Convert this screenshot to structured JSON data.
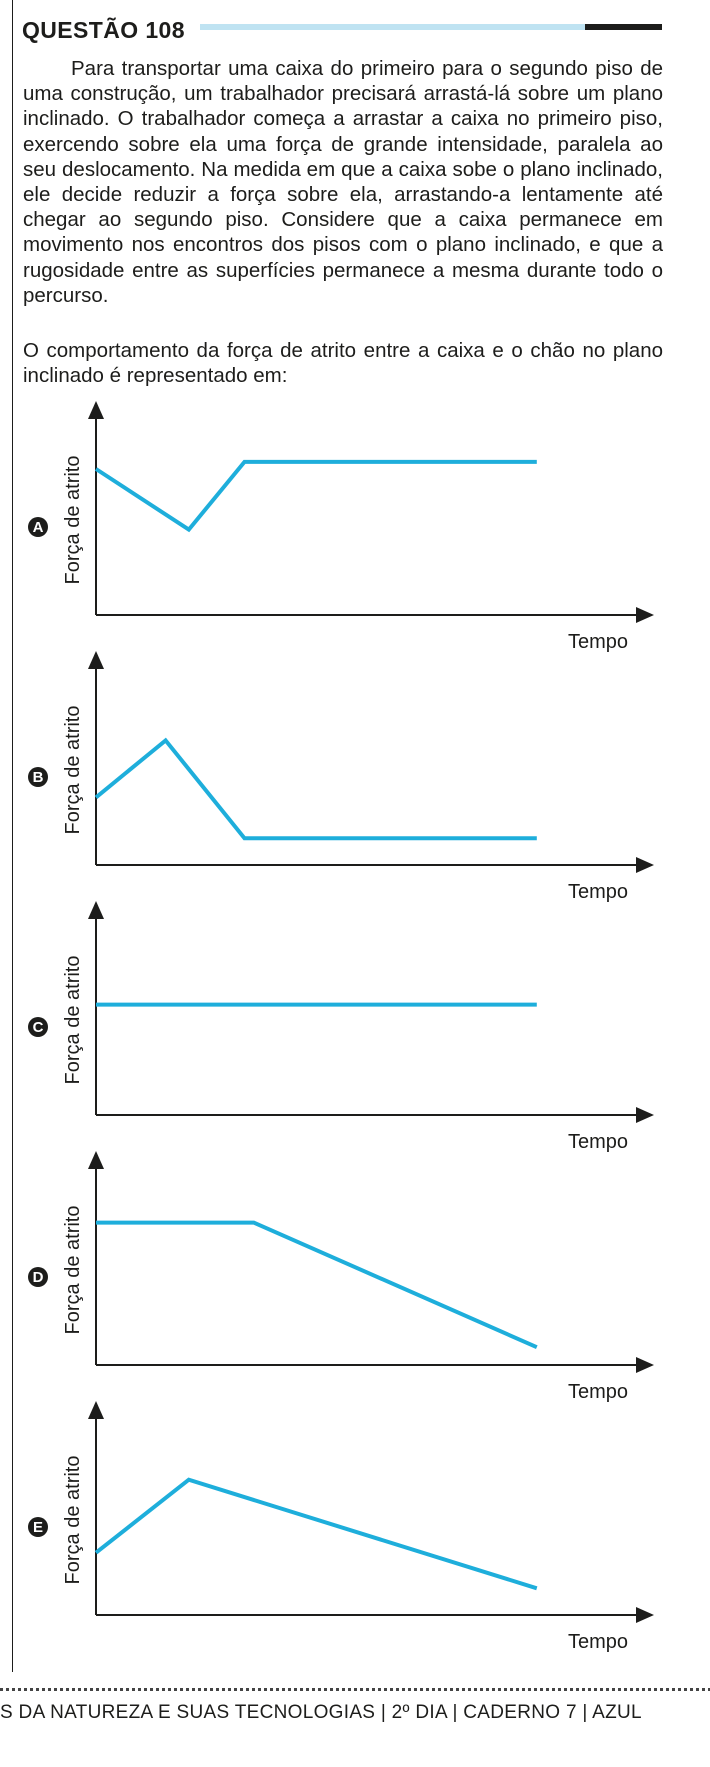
{
  "question": {
    "title": "QUESTÃO 108",
    "paragraph1": "Para transportar uma caixa do primeiro para o segundo piso de uma construção, um trabalhador precisará arrastá-lá sobre um plano inclinado. O trabalhador começa a arrastar a caixa no primeiro piso, exercendo sobre ela uma força de grande intensidade, paralela ao seu deslocamento. Na medida em que a caixa sobe o plano inclinado, ele decide reduzir a força sobre ela, arrastando-a lentamente até chegar ao segundo piso. Considere que a caixa permanece em movimento nos encontros dos pisos com o plano inclinado, e que a rugosidade entre as superfícies permanece a mesma durante todo o percurso.",
    "paragraph2": "O comportamento da força de atrito entre a caixa e o chão no plano inclinado é representado em:"
  },
  "chart_data": [
    {
      "option": "A",
      "type": "line",
      "ylabel": "Força de atrito",
      "xlabel": "Tempo",
      "series": [
        {
          "x": [
            0,
            2,
            3.2,
            9.5
          ],
          "y": [
            8.2,
            4.8,
            8.6,
            8.6
          ]
        }
      ]
    },
    {
      "option": "B",
      "type": "line",
      "ylabel": "Força de atrito",
      "xlabel": "Tempo",
      "series": [
        {
          "x": [
            0,
            1.5,
            3.2,
            9.5
          ],
          "y": [
            3.8,
            7.0,
            1.5,
            1.5
          ]
        }
      ]
    },
    {
      "option": "C",
      "type": "line",
      "ylabel": "Força de atrito",
      "xlabel": "Tempo",
      "series": [
        {
          "x": [
            0,
            9.5
          ],
          "y": [
            6.2,
            6.2
          ]
        }
      ]
    },
    {
      "option": "D",
      "type": "line",
      "ylabel": "Força de atrito",
      "xlabel": "Tempo",
      "series": [
        {
          "x": [
            0,
            3.4,
            9.5
          ],
          "y": [
            8.0,
            8.0,
            1.0
          ]
        }
      ]
    },
    {
      "option": "E",
      "type": "line",
      "ylabel": "Força de atrito",
      "xlabel": "Tempo",
      "series": [
        {
          "x": [
            0,
            2,
            9.5
          ],
          "y": [
            3.5,
            7.6,
            1.5
          ]
        }
      ]
    }
  ],
  "colors": {
    "line": "#1eaedb",
    "axis": "#1d1d1b",
    "title_bar_light": "#bfe3f2"
  },
  "footer": {
    "text": "S DA NATUREZA E SUAS TECNOLOGIAS | 2º DIA | CADERNO 7 | AZUL"
  }
}
